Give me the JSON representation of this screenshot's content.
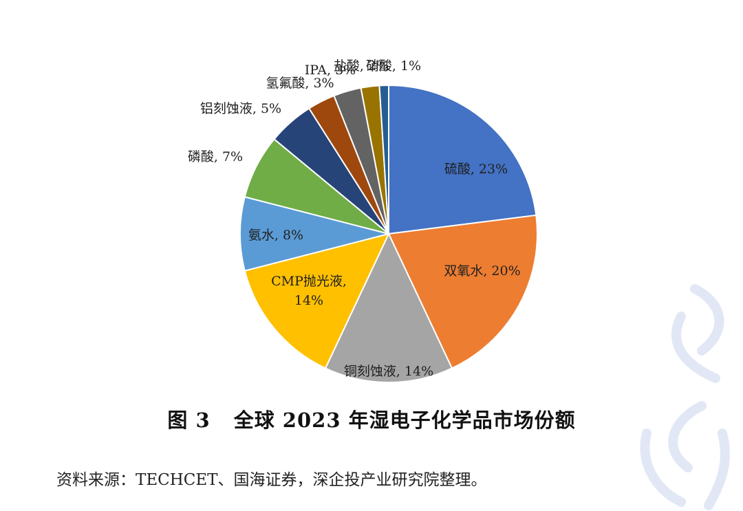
{
  "chart_data": {
    "type": "pie",
    "start_angle_deg": 0,
    "direction": "clockwise",
    "slices": [
      {
        "name": "硫酸",
        "value": 23,
        "label": "硫酸, 23%",
        "color": "#4472C4"
      },
      {
        "name": "双氧水",
        "value": 20,
        "label": "双氧水, 20%",
        "color": "#ED7D31"
      },
      {
        "name": "铜刻蚀液",
        "value": 14,
        "label": "铜刻蚀液, 14%",
        "color": "#A5A5A5"
      },
      {
        "name": "CMP抛光液",
        "value": 14,
        "label": "CMP抛光液,\n14%",
        "color": "#FFC000"
      },
      {
        "name": "氨水",
        "value": 8,
        "label": "氨水, 8%",
        "color": "#5B9BD5"
      },
      {
        "name": "磷酸",
        "value": 7,
        "label": "磷酸, 7%",
        "color": "#70AD47"
      },
      {
        "name": "铝刻蚀液",
        "value": 5,
        "label": "铝刻蚀液, 5%",
        "color": "#264478"
      },
      {
        "name": "氢氟酸",
        "value": 3,
        "label": "氢氟酸, 3%",
        "color": "#9E480E"
      },
      {
        "name": "IPA",
        "value": 3,
        "label": "IPA, 3%",
        "color": "#636363"
      },
      {
        "name": "盐酸",
        "value": 2,
        "label": "盐酸, 2%",
        "color": "#997300"
      },
      {
        "name": "硝酸",
        "value": 1,
        "label": "硝酸, 1%",
        "color": "#255E91"
      }
    ]
  },
  "caption": {
    "number": "图 3",
    "title": "全球 2023 年湿电子化学品市场份额"
  },
  "source": "资料来源：TECHCET、国海证券，深企投产业研究院整理。"
}
